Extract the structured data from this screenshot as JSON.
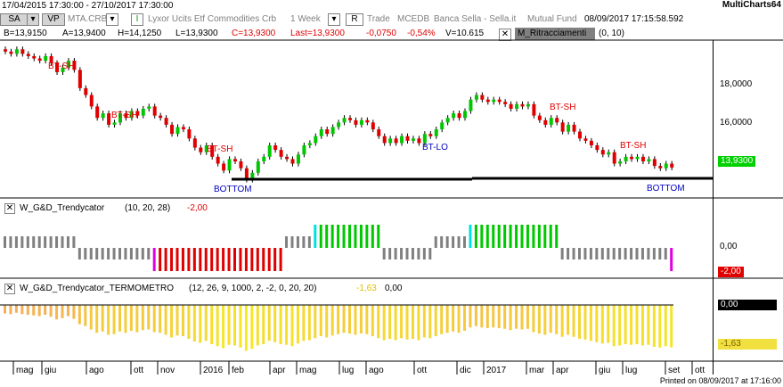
{
  "window": {
    "range": "17/04/2015 17:30:00 - 27/10/2017 17:30:00",
    "app": "MultiCharts64"
  },
  "toolbar": {
    "sa": "SA",
    "vp": "VP",
    "symbol": "MTA.CRB",
    "desc": "Lyxor Ucits Etf Commodities Crb",
    "interval": "1 Week",
    "r": "R",
    "trade": "Trade",
    "exchange": "MCEDB",
    "broker": "Banca Sella - Sella.it",
    "type": "Mutual Fund",
    "datetime": "08/09/2017  17:15:58.592"
  },
  "quote": {
    "b": "B=13,9150",
    "a": "A=13,9400",
    "h": "H=14,1250",
    "l": "L=13,9300",
    "c": "C=13,9300",
    "last": "Last=13,9300",
    "chg": "-0,0750",
    "pct": "-0,54%",
    "v": "V=10.615",
    "study": "M_Ritracciamenti",
    "params": "(0,  10)"
  },
  "price_axis": {
    "labels": [
      "18,0000",
      "16,0000",
      "13,9300"
    ],
    "last": "13,9300"
  },
  "annotations": {
    "btsh": "BT-SH",
    "btlo": "BT-LO",
    "bottom": "BOTTOM"
  },
  "ind1": {
    "name": "W_G&D_Trendycator",
    "params": "(10,  20,  28)",
    "value": "-2,00",
    "axis": [
      "0,00",
      "-2,00"
    ]
  },
  "ind2": {
    "name": "W_G&D_Trendycator_TERMOMETRO",
    "params": "(12,  26,  9,  1000,  2,  -2,  0,  20,  20)",
    "v1": "-1,63",
    "v2": "0,00",
    "axis": [
      "0,00",
      "-1,63"
    ]
  },
  "time_axis": [
    "mag",
    "giu",
    "ago",
    "ott",
    "nov",
    "2016",
    "feb",
    "apr",
    "mag",
    "lug",
    "ago",
    "ott",
    "dic",
    "2017",
    "mar",
    "apr",
    "giu",
    "lug",
    "set",
    "ott"
  ],
  "footer": "Printed on 08/09/2017 at 17:16:00",
  "colors": {
    "up": "#00c800",
    "down": "#e00000",
    "gray": "#808080",
    "cyan": "#00e0e0",
    "magenta": "#e000e0"
  },
  "chart_data": {
    "type": "candlestick",
    "ylim": [
      12.6,
      19.5
    ],
    "close": [
      19.0,
      18.9,
      19.1,
      18.9,
      18.8,
      18.7,
      18.6,
      18.8,
      18.5,
      18.1,
      18.3,
      18.6,
      18.2,
      17.4,
      17.1,
      16.6,
      16.1,
      16.3,
      15.8,
      15.9,
      16.3,
      16.1,
      16.4,
      16.2,
      16.5,
      16.6,
      16.2,
      16.1,
      15.8,
      15.4,
      15.7,
      15.6,
      15.2,
      14.8,
      14.6,
      14.9,
      14.4,
      14.1,
      13.8,
      14.3,
      14.2,
      13.9,
      13.4,
      13.7,
      14.2,
      14.4,
      14.9,
      14.7,
      14.4,
      14.3,
      14.1,
      14.5,
      14.9,
      15.0,
      15.3,
      15.6,
      15.4,
      15.7,
      15.9,
      16.1,
      16.0,
      15.8,
      16.0,
      15.9,
      15.6,
      15.3,
      15.0,
      15.2,
      15.0,
      15.3,
      15.1,
      15.2,
      15.0,
      15.4,
      15.3,
      15.6,
      15.9,
      16.1,
      16.3,
      16.1,
      16.4,
      16.9,
      17.1,
      16.9,
      16.8,
      16.9,
      16.8,
      16.7,
      16.5,
      16.7,
      16.6,
      16.7,
      16.2,
      16.0,
      15.8,
      16.1,
      15.9,
      15.5,
      15.8,
      15.5,
      15.2,
      15.1,
      14.9,
      14.7,
      14.5,
      14.6,
      14.1,
      14.2,
      14.4,
      14.3,
      14.4,
      14.2,
      14.3,
      14.0,
      13.9,
      14.1,
      13.93
    ],
    "ind1": [
      0,
      0,
      0,
      0,
      0,
      0,
      0,
      0,
      0,
      0,
      0,
      0,
      0,
      -1,
      -1,
      -1,
      -1,
      -1,
      -1,
      -1,
      -1,
      -1,
      -1,
      -1,
      -1,
      -1,
      -2,
      -2,
      -2,
      -2,
      -2,
      -2,
      -2,
      -2,
      -2,
      -2,
      -2,
      -2,
      -2,
      -2,
      -2,
      -2,
      -2,
      -2,
      -2,
      -2,
      -2,
      -2,
      -2,
      0,
      0,
      0,
      0,
      0,
      1,
      1,
      1,
      1,
      1,
      1,
      1,
      1,
      1,
      1,
      1,
      1,
      -1,
      -1,
      -1,
      -1,
      -1,
      -1,
      -1,
      -1,
      -1,
      0,
      0,
      0,
      0,
      0,
      0,
      1,
      1,
      1,
      1,
      1,
      1,
      1,
      1,
      1,
      1,
      1,
      1,
      1,
      1,
      1,
      1,
      -1,
      -1,
      -1,
      -1,
      -1,
      -1,
      -1,
      -1,
      -1,
      -1,
      -1,
      -1,
      -1,
      -1,
      -1,
      -1,
      -1,
      -1,
      -1,
      -2,
      -2,
      -2,
      -2,
      -2,
      -2
    ]
  }
}
